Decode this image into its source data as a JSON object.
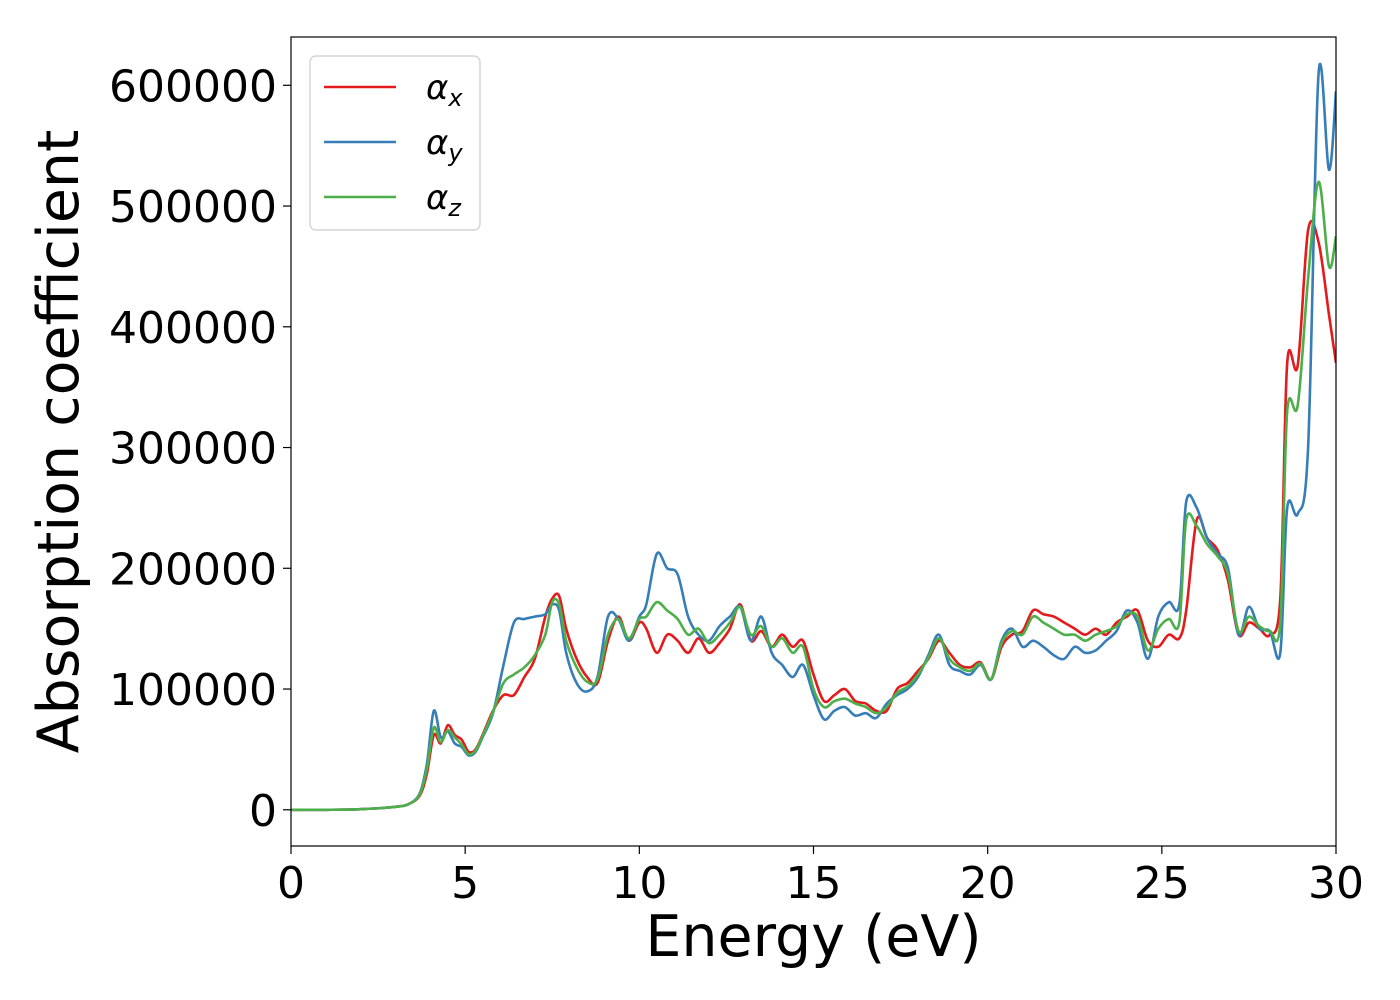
{
  "chart_data": {
    "type": "line",
    "title": "",
    "xlabel": "Energy (eV)",
    "ylabel": "Absorption coefficient",
    "xlim": [
      0,
      30
    ],
    "ylim": [
      -30000,
      640000
    ],
    "xticks": [
      0,
      5,
      10,
      15,
      20,
      25,
      30
    ],
    "xtick_labels": [
      "0",
      "5",
      "10",
      "15",
      "20",
      "25",
      "30"
    ],
    "yticks": [
      0,
      100000,
      200000,
      300000,
      400000,
      500000,
      600000
    ],
    "ytick_labels": [
      "0",
      "100000",
      "200000",
      "300000",
      "400000",
      "500000",
      "600000"
    ],
    "grid": false,
    "legend_position": "top-left",
    "series": [
      {
        "name": "α_x",
        "legend_main": "α",
        "legend_sub": "x",
        "color": "#e41a1c",
        "x": [
          0,
          1,
          2,
          3,
          3.4,
          3.7,
          3.9,
          4.1,
          4.3,
          4.5,
          4.7,
          4.9,
          5.1,
          5.3,
          5.5,
          5.8,
          6.1,
          6.4,
          6.7,
          7.0,
          7.3,
          7.5,
          7.7,
          7.9,
          8.2,
          8.5,
          8.8,
          9.1,
          9.4,
          9.7,
          10.0,
          10.2,
          10.5,
          10.8,
          11.1,
          11.4,
          11.7,
          12.0,
          12.3,
          12.6,
          12.9,
          13.2,
          13.5,
          13.8,
          14.1,
          14.4,
          14.7,
          15.0,
          15.3,
          15.6,
          15.9,
          16.2,
          16.5,
          16.8,
          17.1,
          17.4,
          17.7,
          18.0,
          18.3,
          18.6,
          18.9,
          19.2,
          19.5,
          19.8,
          20.1,
          20.4,
          20.7,
          21.0,
          21.3,
          21.6,
          21.9,
          22.2,
          22.5,
          22.8,
          23.1,
          23.4,
          23.7,
          24.0,
          24.3,
          24.6,
          24.9,
          25.2,
          25.5,
          25.7,
          26.0,
          26.3,
          26.6,
          26.9,
          27.2,
          27.5,
          27.8,
          28.1,
          28.4,
          28.6,
          28.9,
          29.2,
          29.5,
          29.8,
          30.0
        ],
        "y": [
          0,
          0,
          500,
          2500,
          5000,
          12000,
          30000,
          62000,
          55000,
          70000,
          62000,
          58000,
          48000,
          50000,
          62000,
          82000,
          95000,
          95000,
          110000,
          125000,
          160000,
          175000,
          177000,
          150000,
          125000,
          110000,
          105000,
          140000,
          160000,
          140000,
          155000,
          150000,
          130000,
          145000,
          140000,
          130000,
          142000,
          130000,
          138000,
          150000,
          170000,
          140000,
          148000,
          135000,
          145000,
          135000,
          140000,
          112000,
          90000,
          95000,
          100000,
          90000,
          88000,
          82000,
          82000,
          100000,
          105000,
          115000,
          125000,
          140000,
          130000,
          120000,
          118000,
          122000,
          108000,
          135000,
          145000,
          148000,
          165000,
          162000,
          160000,
          155000,
          150000,
          145000,
          150000,
          145000,
          155000,
          160000,
          165000,
          140000,
          135000,
          145000,
          142000,
          165000,
          240000,
          225000,
          215000,
          190000,
          145000,
          155000,
          150000,
          145000,
          175000,
          370000,
          368000,
          480000,
          470000,
          410000,
          370000
        ]
      },
      {
        "name": "α_y",
        "legend_main": "α",
        "legend_sub": "y",
        "color": "#377eb8",
        "x": [
          0,
          1,
          2,
          3,
          3.4,
          3.7,
          3.9,
          4.1,
          4.3,
          4.5,
          4.7,
          4.9,
          5.1,
          5.3,
          5.5,
          5.8,
          6.1,
          6.4,
          6.7,
          7.0,
          7.3,
          7.5,
          7.7,
          7.9,
          8.2,
          8.5,
          8.8,
          9.1,
          9.4,
          9.7,
          10.0,
          10.2,
          10.5,
          10.8,
          11.1,
          11.4,
          11.7,
          12.0,
          12.3,
          12.6,
          12.9,
          13.2,
          13.5,
          13.8,
          14.1,
          14.4,
          14.7,
          15.0,
          15.3,
          15.6,
          15.9,
          16.2,
          16.5,
          16.8,
          17.1,
          17.4,
          17.7,
          18.0,
          18.3,
          18.6,
          18.9,
          19.2,
          19.5,
          19.8,
          20.1,
          20.4,
          20.7,
          21.0,
          21.3,
          21.6,
          21.9,
          22.2,
          22.5,
          22.8,
          23.1,
          23.4,
          23.7,
          24.0,
          24.3,
          24.6,
          24.9,
          25.2,
          25.5,
          25.7,
          26.0,
          26.3,
          26.6,
          26.9,
          27.2,
          27.5,
          27.8,
          28.1,
          28.4,
          28.6,
          28.9,
          29.2,
          29.5,
          29.8,
          30.0
        ],
        "y": [
          0,
          0,
          500,
          2500,
          5000,
          14000,
          38000,
          82000,
          60000,
          65000,
          55000,
          52000,
          45000,
          48000,
          60000,
          80000,
          120000,
          155000,
          158000,
          160000,
          162000,
          170000,
          165000,
          130000,
          105000,
          98000,
          110000,
          160000,
          158000,
          140000,
          160000,
          170000,
          212000,
          200000,
          195000,
          160000,
          145000,
          140000,
          152000,
          160000,
          168000,
          140000,
          160000,
          130000,
          120000,
          110000,
          120000,
          95000,
          75000,
          82000,
          85000,
          78000,
          80000,
          76000,
          88000,
          95000,
          100000,
          110000,
          128000,
          145000,
          120000,
          115000,
          112000,
          120000,
          108000,
          140000,
          150000,
          135000,
          140000,
          135000,
          128000,
          125000,
          135000,
          130000,
          132000,
          140000,
          148000,
          165000,
          155000,
          125000,
          160000,
          172000,
          170000,
          255000,
          250000,
          225000,
          212000,
          200000,
          145000,
          168000,
          150000,
          148000,
          130000,
          250000,
          245000,
          300000,
          610000,
          530000,
          595000
        ]
      },
      {
        "name": "α_z",
        "legend_main": "α",
        "legend_sub": "z",
        "color": "#4daf4a",
        "x": [
          0,
          1,
          2,
          3,
          3.4,
          3.7,
          3.9,
          4.1,
          4.3,
          4.5,
          4.7,
          4.9,
          5.1,
          5.3,
          5.5,
          5.8,
          6.1,
          6.4,
          6.7,
          7.0,
          7.3,
          7.5,
          7.7,
          7.9,
          8.2,
          8.5,
          8.8,
          9.1,
          9.4,
          9.7,
          10.0,
          10.2,
          10.5,
          10.8,
          11.1,
          11.4,
          11.7,
          12.0,
          12.3,
          12.6,
          12.9,
          13.2,
          13.5,
          13.8,
          14.1,
          14.4,
          14.7,
          15.0,
          15.3,
          15.6,
          15.9,
          16.2,
          16.5,
          16.8,
          17.1,
          17.4,
          17.7,
          18.0,
          18.3,
          18.6,
          18.9,
          19.2,
          19.5,
          19.8,
          20.1,
          20.4,
          20.7,
          21.0,
          21.3,
          21.6,
          21.9,
          22.2,
          22.5,
          22.8,
          23.1,
          23.4,
          23.7,
          24.0,
          24.3,
          24.6,
          24.9,
          25.2,
          25.5,
          25.7,
          26.0,
          26.3,
          26.6,
          26.9,
          27.2,
          27.5,
          27.8,
          28.1,
          28.4,
          28.6,
          28.9,
          29.2,
          29.5,
          29.8,
          30.0
        ],
        "y": [
          0,
          0,
          500,
          2500,
          5000,
          13000,
          34000,
          68000,
          56000,
          66000,
          60000,
          54000,
          46000,
          49000,
          61000,
          81000,
          105000,
          112000,
          118000,
          128000,
          145000,
          172000,
          170000,
          140000,
          118000,
          106000,
          108000,
          145000,
          158000,
          142000,
          158000,
          160000,
          172000,
          165000,
          158000,
          145000,
          150000,
          138000,
          145000,
          155000,
          168000,
          145000,
          152000,
          135000,
          142000,
          130000,
          135000,
          100000,
          85000,
          90000,
          92000,
          88000,
          85000,
          80000,
          85000,
          97000,
          102000,
          112000,
          126000,
          142000,
          125000,
          118000,
          115000,
          121000,
          108000,
          138000,
          148000,
          145000,
          160000,
          155000,
          150000,
          145000,
          145000,
          140000,
          145000,
          148000,
          152000,
          162000,
          160000,
          132000,
          150000,
          158000,
          155000,
          240000,
          235000,
          220000,
          210000,
          195000,
          148000,
          160000,
          152000,
          148000,
          155000,
          330000,
          335000,
          440000,
          520000,
          450000,
          475000
        ]
      }
    ]
  }
}
